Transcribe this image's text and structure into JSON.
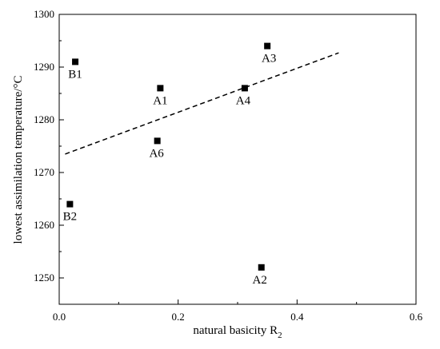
{
  "chart_data": {
    "type": "scatter",
    "xlabel": "natural basicity R",
    "xlabel_subscript": "2",
    "ylabel": "lowest assimilation temperature/°C",
    "xlim": [
      0,
      0.6
    ],
    "ylim": [
      1245,
      1300
    ],
    "x_ticks": [
      "0.0",
      "0.2",
      "0.4",
      "0.6"
    ],
    "y_ticks": [
      "1250",
      "1260",
      "1270",
      "1280",
      "1290",
      "1300"
    ],
    "grid": false,
    "points": [
      {
        "label": "B1",
        "x": 0.027,
        "y": 1291
      },
      {
        "label": "A1",
        "x": 0.17,
        "y": 1286
      },
      {
        "label": "A3",
        "x": 0.35,
        "y": 1294
      },
      {
        "label": "A4",
        "x": 0.312,
        "y": 1286
      },
      {
        "label": "A6",
        "x": 0.165,
        "y": 1276
      },
      {
        "label": "B2",
        "x": 0.018,
        "y": 1264
      },
      {
        "label": "A2",
        "x": 0.34,
        "y": 1252
      }
    ],
    "trendline": {
      "style": "dashed",
      "x": [
        0.01,
        0.47
      ],
      "y": [
        1273.5,
        1292.7
      ]
    }
  }
}
